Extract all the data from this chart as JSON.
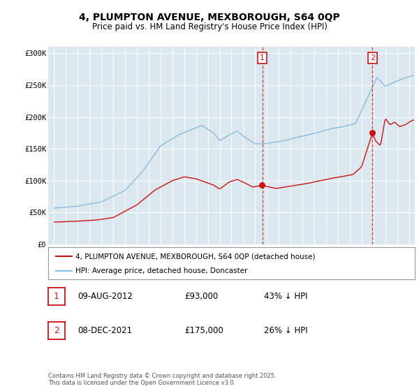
{
  "title": "4, PLUMPTON AVENUE, MEXBOROUGH, S64 0QP",
  "subtitle": "Price paid vs. HM Land Registry's House Price Index (HPI)",
  "red_color": "#cc1111",
  "blue_color": "#88bbdd",
  "grid_color": "#ffffff",
  "legend_label_red": "4, PLUMPTON AVENUE, MEXBOROUGH, S64 0QP (detached house)",
  "legend_label_blue": "HPI: Average price, detached house, Doncaster",
  "marker1_date": 2012.6,
  "marker2_date": 2021.92,
  "marker1_red_value": 93000,
  "marker2_red_value": 175000,
  "footer": "Contains HM Land Registry data © Crown copyright and database right 2025.\nThis data is licensed under the Open Government Licence v3.0.",
  "ylim": [
    0,
    310000
  ],
  "xlim": [
    1994.5,
    2025.5
  ],
  "yticks": [
    0,
    50000,
    100000,
    150000,
    200000,
    250000,
    300000
  ],
  "ytick_labels": [
    "£0",
    "£50K",
    "£100K",
    "£150K",
    "£200K",
    "£250K",
    "£300K"
  ],
  "xticks": [
    1995,
    1996,
    1997,
    1998,
    1999,
    2000,
    2001,
    2002,
    2003,
    2004,
    2005,
    2006,
    2007,
    2008,
    2009,
    2010,
    2011,
    2012,
    2013,
    2014,
    2015,
    2016,
    2017,
    2018,
    2019,
    2020,
    2021,
    2022,
    2023,
    2024,
    2025
  ]
}
